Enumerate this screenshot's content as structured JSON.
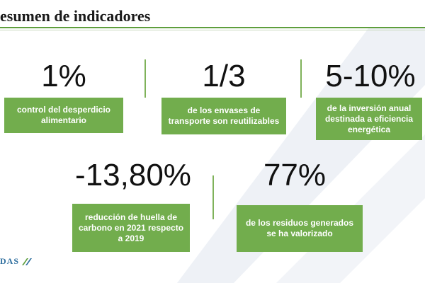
{
  "slide": {
    "title": "esumen de indicadores",
    "logo_text": "DAS",
    "colors": {
      "accent": "#72ad4d",
      "title_line": "#5e9e3c",
      "stripes": "#eef1f6",
      "logo": "#2f6f9f"
    }
  },
  "indicators": [
    {
      "value": "1%",
      "label": "control del desperdicio alimentario"
    },
    {
      "value": "1/3",
      "label": "de los envases de transporte son reutilizables"
    },
    {
      "value": "5-10%",
      "label": "de la inversión anual destinada a eficiencia energética"
    },
    {
      "value": "-13,80%",
      "label": "reducción de huella de carbono en 2021 respecto a 2019"
    },
    {
      "value": "77%",
      "label": "de los residuos generados se ha valorizado"
    }
  ]
}
